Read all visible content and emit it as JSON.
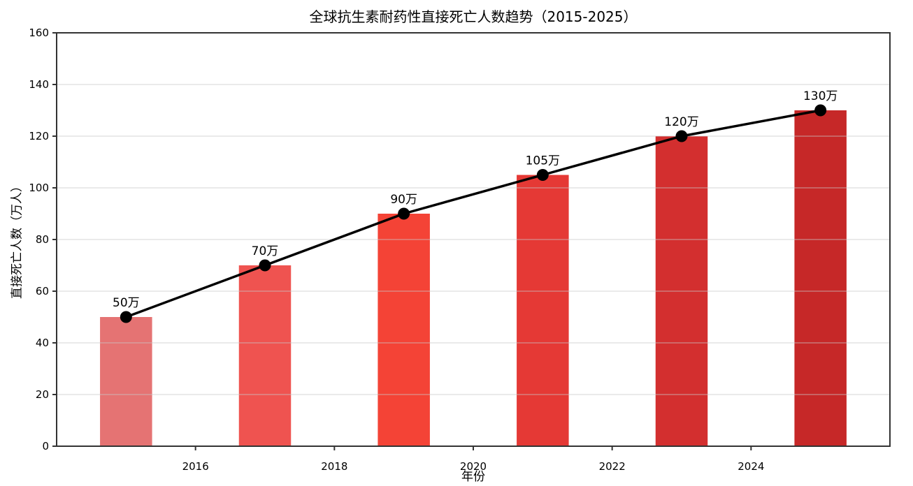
{
  "chart_data": {
    "type": "bar",
    "overlay": "line",
    "title": "全球抗生素耐药性直接死亡人数趋势（2015-2025）",
    "xlabel": "年份",
    "ylabel": "直接死亡人数（万人）",
    "categories": [
      2015,
      2017,
      2019,
      2021,
      2023,
      2025
    ],
    "values": [
      50,
      70,
      90,
      105,
      120,
      130
    ],
    "point_labels": [
      "50万",
      "70万",
      "90万",
      "105万",
      "120万",
      "130万"
    ],
    "bar_colors": [
      "#e57373",
      "#ef5350",
      "#f44336",
      "#e53935",
      "#d32f2f",
      "#c62828"
    ],
    "line_color": "#000000",
    "marker_color": "#000000",
    "spine_color": "#333333",
    "grid_color": "#c9c9c9",
    "background_color": "#ffffff",
    "xlim": [
      2014,
      2026
    ],
    "ylim": [
      0,
      160
    ],
    "xticks": [
      2016,
      2018,
      2020,
      2022,
      2024
    ],
    "yticks": [
      0,
      20,
      40,
      60,
      80,
      100,
      120,
      140,
      160
    ],
    "bar_width_years": 0.75,
    "grid": "horizontal",
    "legend": "none"
  }
}
